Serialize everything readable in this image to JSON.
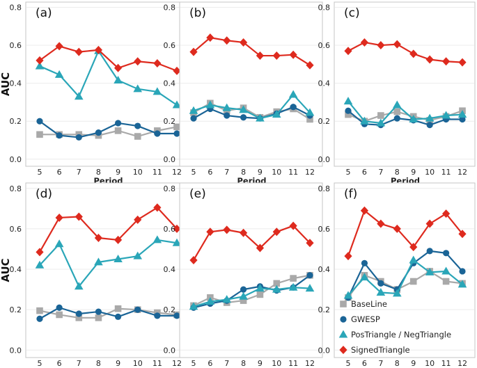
{
  "ylabel": "AUC",
  "xlabel": "Period",
  "colors": {
    "BaseLine": "#a9a9a9",
    "GWESP": "#1a6496",
    "PosTriangle / NegTriangle": "#2aa6b8",
    "SignedTriangle": "#de2a1e"
  },
  "markers": {
    "BaseLine": "square",
    "GWESP": "circle",
    "PosTriangle / NegTriangle": "triangle",
    "SignedTriangle": "diamond"
  },
  "legend": {
    "position": "inside-bottom-right of panel (f)",
    "items": [
      {
        "name": "BaseLine",
        "label": "BaseLine"
      },
      {
        "name": "GWESP",
        "label": "GWESP"
      },
      {
        "name": "PosTriangle / NegTriangle",
        "label": "PosTriangle / NegTriangle"
      },
      {
        "name": "SignedTriangle",
        "label": "SignedTriangle"
      }
    ]
  },
  "chart_data": [
    {
      "type": "line",
      "panel": "(a)",
      "ylim": [
        -0.03,
        0.82
      ],
      "yticks": [
        "0.0",
        "0.2",
        "0.4",
        "0.6",
        "0.8"
      ],
      "x": [
        5,
        6,
        7,
        8,
        9,
        10,
        11,
        12
      ],
      "series": [
        {
          "name": "BaseLine",
          "values": [
            0.13,
            0.13,
            0.13,
            0.125,
            0.15,
            0.12,
            0.15,
            0.17
          ]
        },
        {
          "name": "GWESP",
          "values": [
            0.2,
            0.125,
            0.115,
            0.14,
            0.19,
            0.175,
            0.135,
            0.135
          ]
        },
        {
          "name": "PosTriangle / NegTriangle",
          "values": [
            0.49,
            0.445,
            0.33,
            0.57,
            0.415,
            0.37,
            0.355,
            0.285
          ]
        },
        {
          "name": "SignedTriangle",
          "values": [
            0.52,
            0.595,
            0.565,
            0.575,
            0.48,
            0.515,
            0.505,
            0.465
          ]
        }
      ]
    },
    {
      "type": "line",
      "panel": "(b)",
      "ylim": [
        -0.03,
        0.82
      ],
      "yticks": [
        "0.0",
        "0.2",
        "0.4",
        "0.6",
        "0.8"
      ],
      "x": [
        5,
        6,
        7,
        8,
        9,
        10,
        11,
        12
      ],
      "series": [
        {
          "name": "BaseLine",
          "values": [
            0.245,
            0.295,
            0.255,
            0.27,
            0.22,
            0.25,
            0.265,
            0.21
          ]
        },
        {
          "name": "GWESP",
          "values": [
            0.215,
            0.265,
            0.23,
            0.22,
            0.215,
            0.24,
            0.275,
            0.23
          ]
        },
        {
          "name": "PosTriangle / NegTriangle",
          "values": [
            0.255,
            0.285,
            0.27,
            0.26,
            0.215,
            0.235,
            0.34,
            0.245
          ]
        },
        {
          "name": "SignedTriangle",
          "values": [
            0.565,
            0.64,
            0.625,
            0.615,
            0.545,
            0.545,
            0.55,
            0.495
          ]
        }
      ]
    },
    {
      "type": "line",
      "panel": "(c)",
      "ylim": [
        -0.03,
        0.82
      ],
      "yticks": [
        "0.0",
        "0.2",
        "0.4",
        "0.6",
        "0.8"
      ],
      "x": [
        5,
        6,
        7,
        8,
        9,
        10,
        11,
        12
      ],
      "series": [
        {
          "name": "BaseLine",
          "values": [
            0.235,
            0.2,
            0.23,
            0.25,
            0.225,
            0.205,
            0.225,
            0.255
          ]
        },
        {
          "name": "GWESP",
          "values": [
            0.255,
            0.185,
            0.18,
            0.215,
            0.205,
            0.18,
            0.21,
            0.21
          ]
        },
        {
          "name": "PosTriangle / NegTriangle",
          "values": [
            0.305,
            0.2,
            0.19,
            0.285,
            0.21,
            0.215,
            0.23,
            0.235
          ]
        },
        {
          "name": "SignedTriangle",
          "values": [
            0.57,
            0.615,
            0.6,
            0.605,
            0.555,
            0.525,
            0.515,
            0.51
          ]
        }
      ]
    },
    {
      "type": "line",
      "panel": "(d)",
      "ylim": [
        -0.03,
        0.82
      ],
      "yticks": [
        "0.0",
        "0.2",
        "0.4",
        "0.6",
        "0.8"
      ],
      "x": [
        5,
        6,
        7,
        8,
        9,
        10,
        11,
        12
      ],
      "series": [
        {
          "name": "BaseLine",
          "values": [
            0.195,
            0.175,
            0.16,
            0.16,
            0.205,
            0.2,
            0.185,
            0.175
          ]
        },
        {
          "name": "GWESP",
          "values": [
            0.155,
            0.21,
            0.18,
            0.19,
            0.165,
            0.2,
            0.17,
            0.17
          ]
        },
        {
          "name": "PosTriangle / NegTriangle",
          "values": [
            0.42,
            0.525,
            0.315,
            0.435,
            0.45,
            0.465,
            0.545,
            0.53
          ]
        },
        {
          "name": "SignedTriangle",
          "values": [
            0.485,
            0.655,
            0.66,
            0.555,
            0.545,
            0.645,
            0.705,
            0.6
          ]
        }
      ]
    },
    {
      "type": "line",
      "panel": "(e)",
      "ylim": [
        -0.03,
        0.82
      ],
      "yticks": [
        "0.0",
        "0.2",
        "0.4",
        "0.6",
        "0.8"
      ],
      "x": [
        5,
        6,
        7,
        8,
        9,
        10,
        11,
        12
      ],
      "series": [
        {
          "name": "BaseLine",
          "values": [
            0.22,
            0.26,
            0.235,
            0.245,
            0.275,
            0.33,
            0.355,
            0.37
          ]
        },
        {
          "name": "GWESP",
          "values": [
            0.21,
            0.23,
            0.245,
            0.3,
            0.315,
            0.295,
            0.31,
            0.37
          ]
        },
        {
          "name": "PosTriangle / NegTriangle",
          "values": [
            0.215,
            0.24,
            0.25,
            0.265,
            0.305,
            0.3,
            0.31,
            0.305
          ]
        },
        {
          "name": "SignedTriangle",
          "values": [
            0.445,
            0.585,
            0.595,
            0.58,
            0.505,
            0.585,
            0.615,
            0.53
          ]
        }
      ]
    },
    {
      "type": "line",
      "panel": "(f)",
      "ylim": [
        -0.03,
        0.82
      ],
      "yticks": [
        "0.0",
        "0.2",
        "0.4",
        "0.6",
        "0.8"
      ],
      "x": [
        5,
        6,
        7,
        8,
        9,
        10,
        11,
        12
      ],
      "series": [
        {
          "name": "BaseLine",
          "values": [
            0.26,
            0.37,
            0.34,
            0.3,
            0.34,
            0.39,
            0.34,
            0.33
          ]
        },
        {
          "name": "GWESP",
          "values": [
            0.26,
            0.43,
            0.33,
            0.3,
            0.43,
            0.49,
            0.48,
            0.39
          ]
        },
        {
          "name": "PosTriangle / NegTriangle",
          "values": [
            0.27,
            0.36,
            0.285,
            0.28,
            0.445,
            0.385,
            0.39,
            0.325
          ]
        },
        {
          "name": "SignedTriangle",
          "values": [
            0.465,
            0.69,
            0.625,
            0.6,
            0.51,
            0.625,
            0.675,
            0.575
          ]
        }
      ]
    }
  ]
}
